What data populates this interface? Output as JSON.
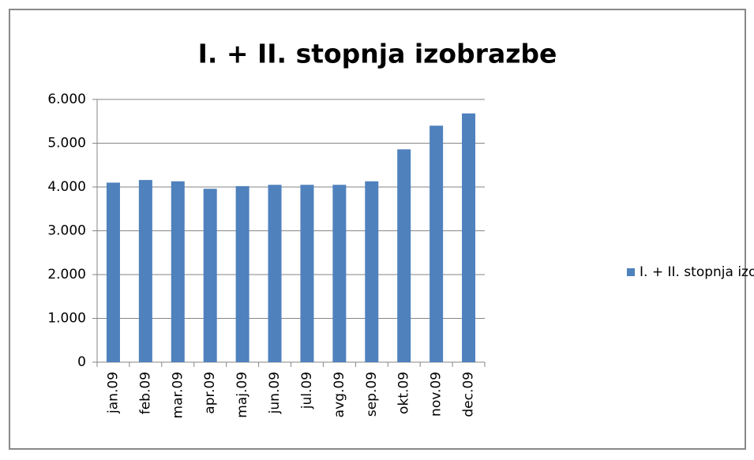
{
  "chart_data": {
    "type": "bar",
    "title": "I. +  II. stopnja izobrazbe",
    "categories": [
      "jan.09",
      "feb.09",
      "mar.09",
      "apr.09",
      "maj.09",
      "jun.09",
      "jul.09",
      "avg.09",
      "sep.09",
      "okt.09",
      "nov.09",
      "dec.09"
    ],
    "series": [
      {
        "name": "I. +  II. stopnja izobrazbe",
        "color": "#4f81bd",
        "values": [
          4100,
          4160,
          4130,
          3960,
          4020,
          4050,
          4050,
          4050,
          4130,
          4860,
          5400,
          5680
        ]
      }
    ],
    "ylim": [
      0,
      6000
    ],
    "yticks": [
      0,
      {
        "value": 1000,
        "label": "1.000"
      },
      {
        "value": 2000,
        "label": "2.000"
      },
      {
        "value": 3000,
        "label": "3.000"
      },
      {
        "value": 4000,
        "label": "4.000"
      },
      {
        "value": 5000,
        "label": "5.000"
      },
      {
        "value": 6000,
        "label": "6.000"
      }
    ],
    "grid": true,
    "legend": "right"
  }
}
